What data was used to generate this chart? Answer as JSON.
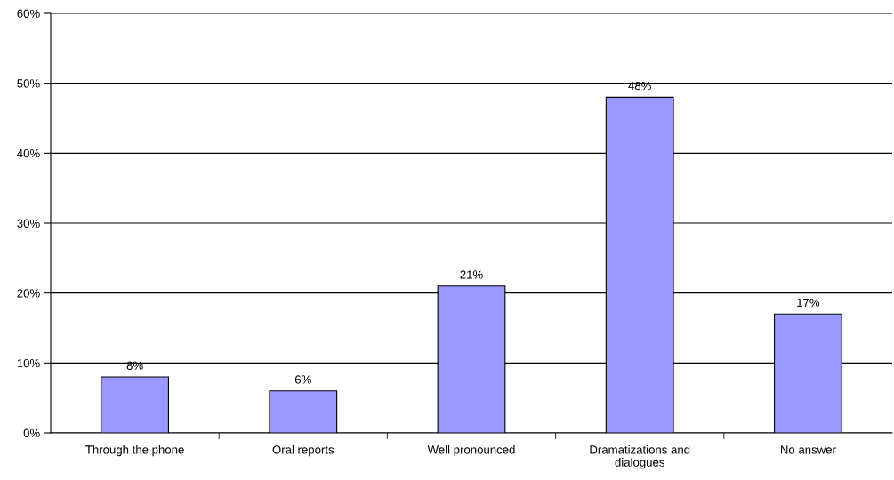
{
  "chart_data": {
    "type": "bar",
    "categories": [
      "Through the phone",
      "Oral reports",
      "Well pronounced",
      "Dramatizations and dialogues",
      "No answer"
    ],
    "values": [
      8,
      6,
      21,
      48,
      17
    ],
    "value_labels": [
      "8%",
      "6%",
      "21%",
      "48%",
      "17%"
    ],
    "color": "#9999ff",
    "ylim": [
      0,
      60
    ],
    "yticks": [
      {
        "value": 0,
        "label": "0%"
      },
      {
        "value": 10,
        "label": "10%"
      },
      {
        "value": 20,
        "label": "20%"
      },
      {
        "value": 30,
        "label": "30%"
      },
      {
        "value": 40,
        "label": "40%"
      },
      {
        "value": 50,
        "label": "50%"
      },
      {
        "value": 60,
        "label": "60%"
      }
    ],
    "grid": "y",
    "legend": false
  }
}
